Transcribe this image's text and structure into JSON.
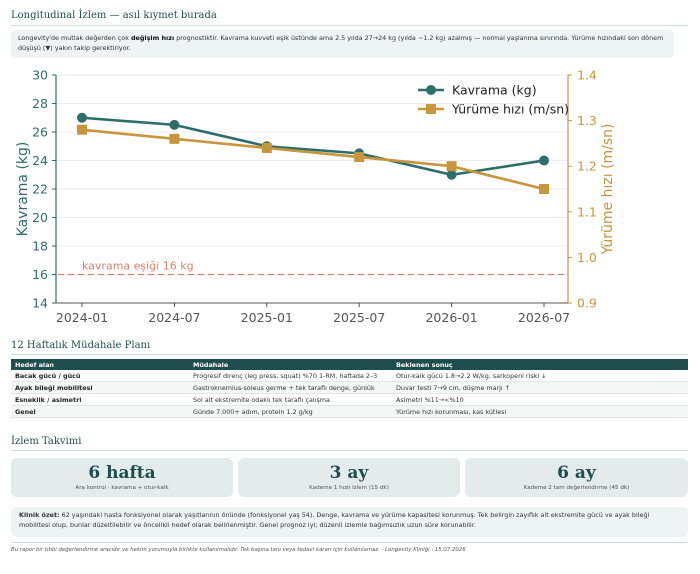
{
  "header": {
    "title": "Longitudinal İzlem — asıl kıymet burada"
  },
  "note": {
    "pre": "Longevity'de mutlak değerden çok ",
    "bold": "değişim hızı",
    "post": " prognostiktir. Kavrama kuvveti eşik üstünde ama 2.5 yılda 27→24 kg (yılda ~1.2 kg) azalmış — normal yaşlanma sınırında. Yürüme hızındaki son dönem düşüşü (▼) yakın takip gerektiriyor."
  },
  "chart_data": {
    "type": "line",
    "categories": [
      "2024-01",
      "2024-07",
      "2025-01",
      "2025-07",
      "2026-01",
      "2026-07"
    ],
    "series": [
      {
        "name": "Kavrama (kg)",
        "axis": "left",
        "color": "#2e6e6a",
        "marker": "circle",
        "values": [
          27,
          26.5,
          25,
          24.5,
          23,
          24
        ]
      },
      {
        "name": "Yürüme hızı (m/sn)",
        "axis": "right",
        "color": "#c8963c",
        "marker": "square",
        "values": [
          1.28,
          1.26,
          1.24,
          1.22,
          1.2,
          1.15
        ]
      }
    ],
    "ylabel_left": "Kavrama (kg)",
    "ylabel_right": "Yürüme hızı (m/sn)",
    "ylim_left": [
      14,
      30
    ],
    "yticks_left": [
      14,
      16,
      18,
      20,
      22,
      24,
      26,
      28,
      30
    ],
    "ylim_right": [
      0.9,
      1.4
    ],
    "yticks_right": [
      0.9,
      1.0,
      1.1,
      1.2,
      1.3,
      1.4
    ],
    "threshold": {
      "value": 16,
      "label": "kavrama eşiği 16 kg",
      "color": "#d9826a"
    },
    "grid": true,
    "legend": "top-right",
    "left_axis_color": "#2e6e6a",
    "right_axis_color": "#c8963c"
  },
  "plan": {
    "title": "12 Haftalık Müdahale Planı",
    "headers": [
      "Hedef alan",
      "Müdahale",
      "Beklenen sonuç"
    ],
    "rows": [
      [
        "Bacak gücü / gücü",
        "Progresif direnç (leg press, squat) %70 1-RM, haftada 2–3",
        "Otur-kalk gücü 1.8→2.2 W/kg, sarkopeni riski ↓"
      ],
      [
        "Ayak bileği mobilitesi",
        "Gastroknemius-soleus germe + tek taraflı denge, günlük",
        "Duvar testi 7→9 cm, düşme marjı ↑"
      ],
      [
        "Esneklik / asimetri",
        "Sol alt ekstremite odaklı tek taraflı çalışma",
        "Asimetri %11→<%10"
      ],
      [
        "Genel",
        "Günde 7.000+ adım, protein 1.2 g/kg",
        "Yürüme hızı korunması, kas kütlesi"
      ]
    ]
  },
  "schedule": {
    "title": "İzlem Takvimi",
    "cards": [
      {
        "big": "6 hafta",
        "small": "Ara kontrol · kavrama + otur-kalk"
      },
      {
        "big": "3 ay",
        "small": "Kademe 1 hızlı izlem (15 dk)"
      },
      {
        "big": "6 ay",
        "small": "Kademe 2 tam değerlendirme (45 dk)"
      }
    ]
  },
  "summary": {
    "bold": "Klinik özet:",
    "text": " 62 yaşındaki hasta fonksiyonel olarak yaşıtlarının önünde (fonksiyonel yaş 54). Denge, kavrama ve yürüme kapasitesi korunmuş. Tek belirgin zayıflık alt ekstremite gücü ve ayak bileği mobilitesi olup, bunlar düzeltilebilir ve öncelikli hedef olarak belirlenmiştir. Genel prognoz iyi; düzenli izlemle bağımsızlık uzun süre korunabilir."
  },
  "footer": {
    "text": "Bu rapor bir tıbbi değerlendirme aracıdır ve hekim yorumuyla birlikte kullanılmalıdır. Tek başına tanı veya tedavi kararı için kullanılamaz. · Longevity Kliniği · 15.07.2026"
  }
}
